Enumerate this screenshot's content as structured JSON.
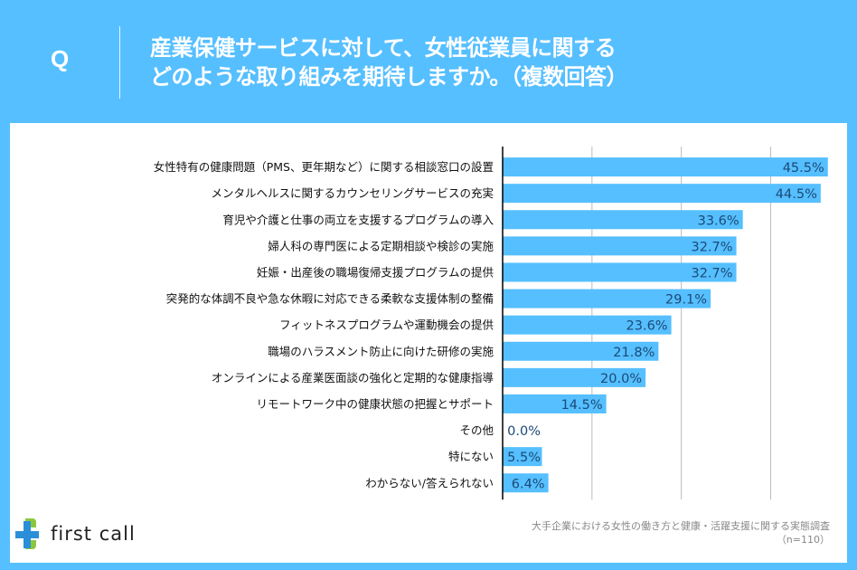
{
  "header": {
    "q_mark": "Q",
    "title_line1": "産業保健サービスに対して、女性従業員に関する",
    "title_line2": "どのような取り組みを期待しますか。（複数回答）"
  },
  "colors": {
    "background": "#56bfff",
    "bar": "#56bfff",
    "value_text": "#1a4a78",
    "grid": "#bbbbbb",
    "axis": "#000000"
  },
  "chart_data": {
    "type": "bar",
    "orientation": "horizontal",
    "title": "産業保健サービスに対して、女性従業員に関するどのような取り組みを期待しますか。（複数回答）",
    "xlabel": "",
    "ylabel": "",
    "unit": "%",
    "xlim": [
      0,
      47.3
    ],
    "gridlines": [
      12.5,
      25,
      37.5
    ],
    "grid": true,
    "categories": [
      "女性特有の健康問題（PMS、更年期など）に関する相談窓口の設置",
      "メンタルヘルスに関するカウンセリングサービスの充実",
      "育児や介護と仕事の両立を支援するプログラムの導入",
      "婦人科の専門医による定期相談や検診の実施",
      "妊娠・出産後の職場復帰支援プログラムの提供",
      "突発的な体調不良や急な休暇に対応できる柔軟な支援体制の整備",
      "フィットネスプログラムや運動機会の提供",
      "職場のハラスメント防止に向けた研修の実施",
      "オンラインによる産業医面談の強化と定期的な健康指導",
      "リモートワーク中の健康状態の把握とサポート",
      "その他",
      "特にない",
      "わからない/答えられない"
    ],
    "values": [
      45.5,
      44.5,
      33.6,
      32.7,
      32.7,
      29.1,
      23.6,
      21.8,
      20.0,
      14.5,
      0.0,
      5.5,
      6.4
    ],
    "value_labels": [
      "45.5%",
      "44.5%",
      "33.6%",
      "32.7%",
      "32.7%",
      "29.1%",
      "23.6%",
      "21.8%",
      "20.0%",
      "14.5%",
      "0.0%",
      "5.5%",
      "6.4%"
    ]
  },
  "footer": {
    "logo_text": "first call",
    "source_line1": "大手企業における女性の働き方と健康・活躍支援に関する実態調査",
    "source_line2": "（n=110）"
  }
}
